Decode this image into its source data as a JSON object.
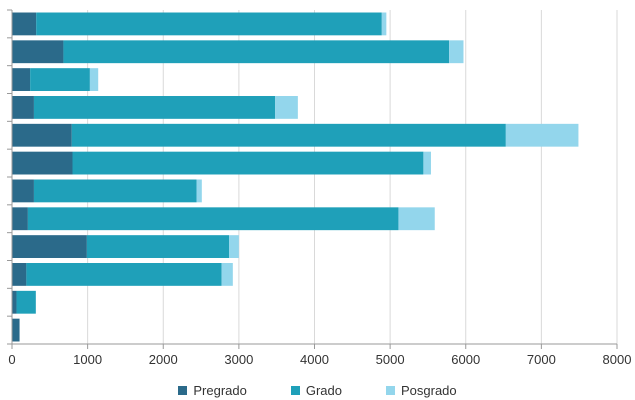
{
  "chart_data": {
    "type": "bar",
    "orientation": "horizontal",
    "stacked": true,
    "categories": [
      "",
      "",
      "",
      "",
      "",
      "",
      "",
      "",
      "",
      "",
      "",
      ""
    ],
    "series": [
      {
        "name": "Pregrado",
        "color": "#2b6a8a",
        "values": [
          320,
          680,
          240,
          290,
          790,
          800,
          290,
          210,
          990,
          190,
          60,
          100
        ]
      },
      {
        "name": "Grado",
        "color": "#1fa0b9",
        "values": [
          4570,
          5100,
          790,
          3190,
          5740,
          4640,
          2150,
          4900,
          1880,
          2580,
          255,
          0
        ]
      },
      {
        "name": "Posgrado",
        "color": "#93d6ec",
        "values": [
          60,
          190,
          110,
          300,
          960,
          100,
          70,
          480,
          130,
          150,
          0,
          0
        ]
      }
    ],
    "xlim": [
      0,
      8000
    ],
    "xticks": [
      "0",
      "1000",
      "2000",
      "3000",
      "4000",
      "5000",
      "6000",
      "7000",
      "8000"
    ],
    "grid": true,
    "legend_position": "bottom"
  }
}
